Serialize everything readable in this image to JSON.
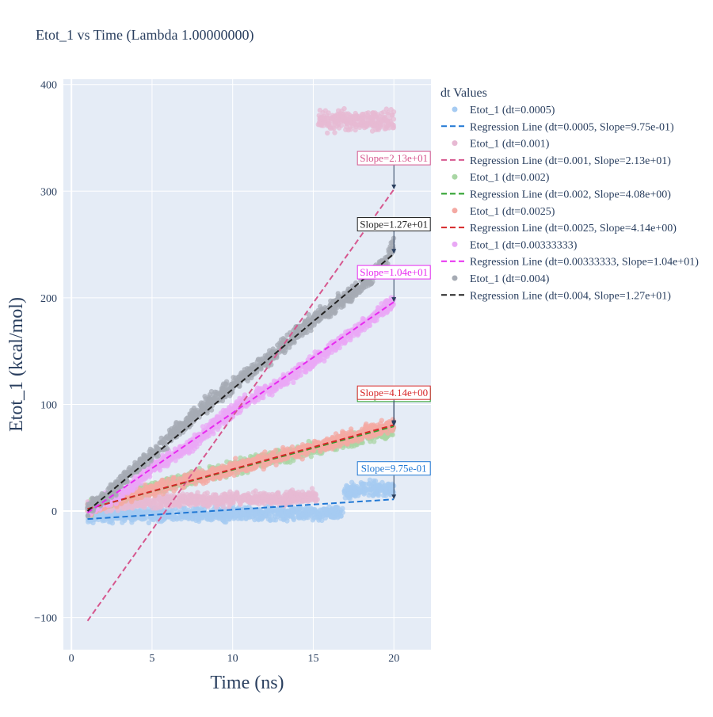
{
  "chart_data": {
    "type": "scatter",
    "title": "Etot_1 vs Time (Lambda 1.00000000)",
    "xlabel": "Time (ns)",
    "ylabel": "Etot_1 (kcal/mol)",
    "xlim": [
      -0.5,
      22.3
    ],
    "ylim": [
      -130,
      405
    ],
    "x_ticks": [
      0,
      5,
      10,
      15,
      20
    ],
    "y_ticks": [
      -100,
      0,
      100,
      200,
      300,
      400
    ],
    "grid": true,
    "background": "#e5ecf6",
    "legend": {
      "title": "dt Values",
      "position": "right"
    },
    "series": [
      {
        "name": "Etot_1 (dt=0.0005)",
        "kind": "scatter",
        "color": "#a6cbf2",
        "segments": [
          {
            "x": [
              1,
              4,
              8,
              12,
              16.9
            ],
            "y": [
              -5,
              -4,
              -3,
              -2,
              -2
            ],
            "spread": 6
          },
          {
            "x": [
              16.9,
              18,
              20
            ],
            "y": [
              19,
              20,
              21
            ],
            "spread": 7
          }
        ]
      },
      {
        "name": "Regression Line (dt=0.0005, Slope=9.75e-01)",
        "kind": "line",
        "color": "#1f77d4",
        "x": [
          1,
          20
        ],
        "y": [
          -7.5,
          11.0
        ]
      },
      {
        "name": "Etot_1 (dt=0.001)",
        "kind": "scatter",
        "color": "#e7b9d3",
        "segments": [
          {
            "x": [
              1,
              5,
              10,
              15.3
            ],
            "y": [
              5,
              9,
              11,
              14
            ],
            "spread": 6
          },
          {
            "x": [
              15.3,
              17.5,
              20
            ],
            "y": [
              365,
              366,
              366
            ],
            "spread": 9
          }
        ]
      },
      {
        "name": "Regression Line (dt=0.001, Slope=2.13e+01)",
        "kind": "line",
        "color": "#d6578e",
        "x": [
          1,
          20
        ],
        "y": [
          -103,
          301.7
        ]
      },
      {
        "name": "Etot_1 (dt=0.002)",
        "kind": "scatter",
        "color": "#a9d6a4",
        "segments": [
          {
            "x": [
              1,
              4,
              8,
              12,
              16,
              20
            ],
            "y": [
              2,
              17,
              33,
              48,
              62,
              76
            ],
            "spread": 6
          }
        ]
      },
      {
        "name": "Regression Line (dt=0.002, Slope=4.08e+00)",
        "kind": "line",
        "color": "#2ca02c",
        "x": [
          1,
          20
        ],
        "y": [
          2.0,
          79.5
        ]
      },
      {
        "name": "Etot_1 (dt=0.0025)",
        "kind": "scatter",
        "color": "#f4a9a3",
        "segments": [
          {
            "x": [
              1,
              4,
              8,
              12,
              16,
              20
            ],
            "y": [
              2,
              16,
              32,
              48,
              64,
              81
            ],
            "spread": 6
          }
        ]
      },
      {
        "name": "Regression Line (dt=0.0025, Slope=4.14e+00)",
        "kind": "line",
        "color": "#d62728",
        "x": [
          1,
          20
        ],
        "y": [
          2.0,
          80.7
        ]
      },
      {
        "name": "Etot_1 (dt=0.00333333)",
        "kind": "scatter",
        "color": "#e9a8f5",
        "segments": [
          {
            "x": [
              1,
              3,
              5,
              7,
              9,
              11,
              13,
              15,
              17,
              19,
              20
            ],
            "y": [
              2,
              15,
              40,
              58,
              83,
              105,
              120,
              140,
              163,
              185,
              197
            ],
            "spread": 6
          }
        ]
      },
      {
        "name": "Regression Line (dt=0.00333333, Slope=1.04e+01)",
        "kind": "line",
        "color": "#e72bf0",
        "x": [
          1,
          20
        ],
        "y": [
          -1.5,
          196.1
        ]
      },
      {
        "name": "Etot_1 (dt=0.004)",
        "kind": "scatter",
        "color": "#a6abb4",
        "segments": [
          {
            "x": [
              1,
              2,
              4,
              6,
              8,
              10,
              12,
              14,
              16,
              18,
              19.5,
              20
            ],
            "y": [
              2,
              12,
              40,
              68,
              95,
              118,
              140,
              168,
              190,
              210,
              235,
              250
            ],
            "spread": 7
          }
        ]
      },
      {
        "name": "Regression Line (dt=0.004, Slope=1.27e+01)",
        "kind": "line",
        "color": "#222222",
        "x": [
          1,
          20
        ],
        "y": [
          0.0,
          241.3
        ]
      }
    ],
    "annotations": [
      {
        "text": "Slope=2.13e+01",
        "x": 20,
        "y": 301.7,
        "color": "#d6578e",
        "label_y": 331
      },
      {
        "text": "Slope=1.27e+01",
        "x": 20,
        "y": 241.3,
        "color": "#222222",
        "label_y": 269
      },
      {
        "text": "Slope=1.04e+01",
        "x": 20,
        "y": 196.1,
        "color": "#e72bf0",
        "label_y": 224
      },
      {
        "text": "Slope=4.08e+00",
        "x": 20,
        "y": 79.5,
        "color": "#2ca02c",
        "label_y": 109
      },
      {
        "text": "Slope=4.14e+00",
        "x": 20,
        "y": 80.7,
        "color": "#d62728",
        "label_y": 111
      },
      {
        "text": "Slope=9.75e-01",
        "x": 20,
        "y": 11.0,
        "color": "#1f77d4",
        "label_y": 40
      }
    ]
  }
}
